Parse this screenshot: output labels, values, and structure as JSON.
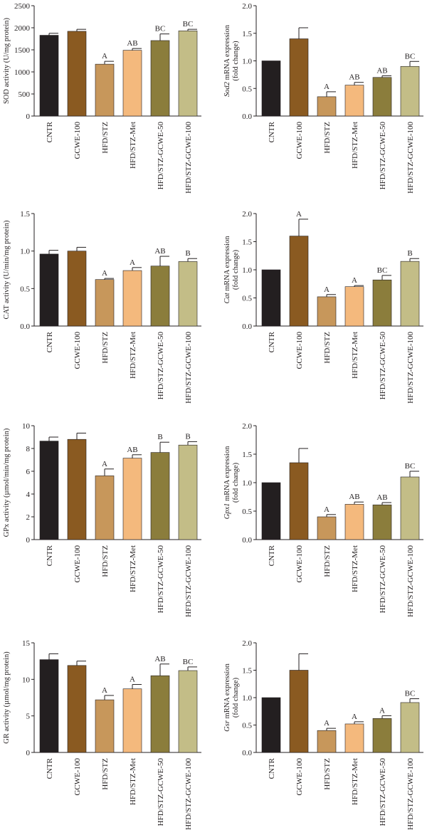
{
  "colors": {
    "CNTR": "#231f20",
    "GCWE-100": "#8a5a21",
    "HFD/STZ": "#c7975b",
    "HFD/STZ-Met": "#f4b97d",
    "HFD/STZ-GCWE-50": "#8b7d3c",
    "HFD/STZ-GCWE-100": "#c3bd87",
    "axis": "#231f20"
  },
  "chart_data": [
    {
      "type": "bar",
      "panel": "sod-activity",
      "categories": [
        "CNTR",
        "GCWE-100",
        "HFD/STZ",
        "HFD/STZ-Met",
        "HFD/STZ-GCWE-50",
        "HFD/STZ-GCWE-100"
      ],
      "values": [
        1830,
        1920,
        1175,
        1490,
        1710,
        1930
      ],
      "errors": [
        45,
        45,
        65,
        40,
        150,
        35
      ],
      "annotations": [
        "",
        "",
        "A",
        "AB",
        "BC",
        "BC"
      ],
      "ylabel": "SOD activity (U/mg protein)",
      "ylim": [
        0,
        2500
      ],
      "yticks": [
        "0",
        "500",
        "1000",
        "1500",
        "2000",
        "2500"
      ]
    },
    {
      "type": "bar",
      "panel": "sod2-mrna",
      "categories": [
        "CNTR",
        "GCWE-100",
        "HFD/STZ",
        "HFD/STZ-Met",
        "HFD/STZ-GCWE-50",
        "HFD/STZ-GCWE-100"
      ],
      "values": [
        1.0,
        1.4,
        0.35,
        0.56,
        0.7,
        0.9
      ],
      "errors": [
        0,
        0.2,
        0.09,
        0.05,
        0.03,
        0.09
      ],
      "annotations": [
        "",
        "",
        "A",
        "AB",
        "AB",
        "BC"
      ],
      "ylabel_gene": "Sod2",
      "ylabel": " mRNA expression",
      "ylabel2": "(fold change)",
      "ylim": [
        0,
        2.0
      ],
      "yticks": [
        "0.0",
        "0.5",
        "1.0",
        "1.5",
        "2.0"
      ]
    },
    {
      "type": "bar",
      "panel": "cat-activity",
      "categories": [
        "CNTR",
        "GCWE-100",
        "HFD/STZ",
        "HFD/STZ-Met",
        "HFD/STZ-GCWE-50",
        "HFD/STZ-GCWE-100"
      ],
      "values": [
        0.96,
        1.0,
        0.62,
        0.74,
        0.8,
        0.86
      ],
      "errors": [
        0.05,
        0.05,
        0.015,
        0.04,
        0.13,
        0.04
      ],
      "annotations": [
        "",
        "",
        "A",
        "A",
        "AB",
        "B"
      ],
      "ylabel": "CAT activity (U/min/mg protein)",
      "ylim": [
        0,
        1.5
      ],
      "yticks": [
        "0.0",
        "0.5",
        "1.0",
        "1.5"
      ]
    },
    {
      "type": "bar",
      "panel": "cat-mrna",
      "categories": [
        "CNTR",
        "GCWE-100",
        "HFD/STZ",
        "HFD/STZ-Met",
        "HFD/STZ-GCWE-50",
        "HFD/STZ-GCWE-100"
      ],
      "values": [
        1.0,
        1.6,
        0.52,
        0.7,
        0.82,
        1.15
      ],
      "errors": [
        0,
        0.3,
        0.04,
        0.02,
        0.08,
        0.05
      ],
      "annotations": [
        "",
        "A",
        "A",
        "A",
        "BC",
        "B"
      ],
      "ylabel_gene": "Cat",
      "ylabel": " mRNA expression",
      "ylabel2": "(fold change)",
      "ylim": [
        0,
        2.0
      ],
      "yticks": [
        "0.0",
        "0.5",
        "1.0",
        "1.5",
        "2.0"
      ]
    },
    {
      "type": "bar",
      "panel": "gpx-activity",
      "categories": [
        "CNTR",
        "GCWE-100",
        "HFD/STZ",
        "HFD/STZ-Met",
        "HFD/STZ-GCWE-50",
        "HFD/STZ-GCWE-100"
      ],
      "values": [
        8.65,
        8.8,
        5.6,
        7.15,
        7.65,
        8.3
      ],
      "errors": [
        0.35,
        0.55,
        0.6,
        0.3,
        0.9,
        0.3
      ],
      "annotations": [
        "",
        "",
        "A",
        "AB",
        "B",
        "B"
      ],
      "ylabel": "GPx activity (µmol/min/mg protein)",
      "ylim": [
        0,
        10
      ],
      "yticks": [
        "0",
        "2",
        "4",
        "6",
        "8",
        "10"
      ]
    },
    {
      "type": "bar",
      "panel": "gpx1-mrna",
      "categories": [
        "CNTR",
        "GCWE-100",
        "HFD/STZ",
        "HFD/STZ-Met",
        "HFD/STZ-GCWE-50",
        "HFD/STZ-GCWE-100"
      ],
      "values": [
        1.0,
        1.35,
        0.4,
        0.62,
        0.61,
        1.1
      ],
      "errors": [
        0,
        0.25,
        0.04,
        0.04,
        0.04,
        0.1
      ],
      "annotations": [
        "",
        "",
        "A",
        "AB",
        "AB",
        "BC"
      ],
      "ylabel_gene": "Gpx1",
      "ylabel": " mRNA expression",
      "ylabel2": "(fold change)",
      "ylim": [
        0,
        2.0
      ],
      "yticks": [
        "0.0",
        "0.5",
        "1.0",
        "1.5",
        "2.0"
      ]
    },
    {
      "type": "bar",
      "panel": "gr-activity",
      "categories": [
        "CNTR",
        "GCWE-100",
        "HFD/STZ",
        "HFD/STZ-Met",
        "HFD/STZ-GCWE-50",
        "HFD/STZ-GCWE-100"
      ],
      "values": [
        12.7,
        11.9,
        7.2,
        8.7,
        10.5,
        11.2
      ],
      "errors": [
        0.8,
        0.6,
        0.6,
        0.6,
        1.6,
        0.5
      ],
      "annotations": [
        "",
        "",
        "A",
        "A",
        "AB",
        "BC"
      ],
      "ylabel": "GR activity (µmol/mg protein)",
      "ylim": [
        0,
        15
      ],
      "yticks": [
        "0",
        "5",
        "10",
        "15"
      ]
    },
    {
      "type": "bar",
      "panel": "gsr-mrna",
      "categories": [
        "CNTR",
        "GCWE-100",
        "HFD/STZ",
        "HFD/STZ-Met",
        "HFD/STZ-GCWE-50",
        "HFD/STZ-GCWE-100"
      ],
      "values": [
        1.0,
        1.5,
        0.4,
        0.52,
        0.62,
        0.91
      ],
      "errors": [
        0,
        0.3,
        0.04,
        0.04,
        0.05,
        0.07
      ],
      "annotations": [
        "",
        "",
        "A",
        "A",
        "A",
        "BC"
      ],
      "ylabel_gene": "Gsr",
      "ylabel": " mRNA expression",
      "ylabel2": "(fold change)",
      "ylim": [
        0,
        2.0
      ],
      "yticks": [
        "0.0",
        "0.5",
        "1.0",
        "1.5",
        "2.0"
      ]
    }
  ]
}
